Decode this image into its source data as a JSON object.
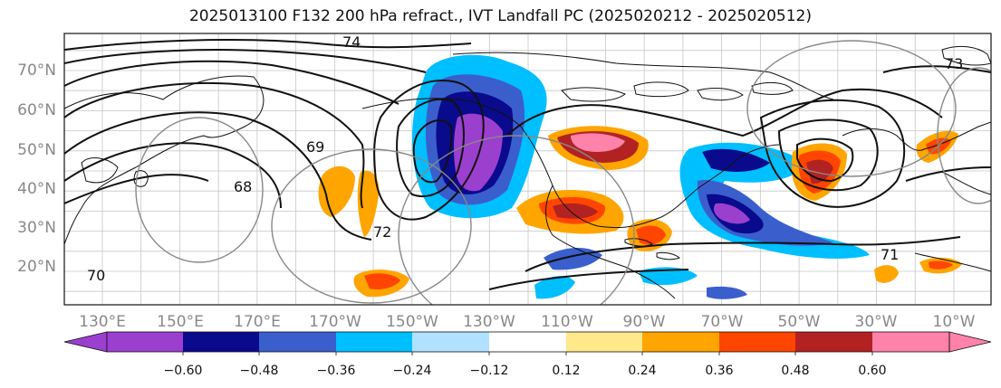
{
  "title": "2025013100 F132 200 hPa refract., IVT Landfall PC (2025020212 - 2025020512)",
  "lat_labels": [
    "70°N",
    "60°N",
    "50°N",
    "40°N",
    "30°N",
    "20°N"
  ],
  "lon_labels": [
    "130°E",
    "150°E",
    "170°E",
    "170°W",
    "150°W",
    "130°W",
    "110°W",
    "90°W",
    "70°W",
    "50°W",
    "30°W",
    "10°W"
  ],
  "contour_labels": [
    "74",
    "73",
    "72",
    "71",
    "70",
    "69",
    "68"
  ],
  "colorbar": {
    "ticks": [
      "−0.60",
      "−0.48",
      "−0.36",
      "−0.24",
      "−0.12",
      "0.12",
      "0.24",
      "0.36",
      "0.48",
      "0.60"
    ],
    "colors": [
      "#9b3fcf",
      "#0a0a8c",
      "#3a5fcd",
      "#00bfff",
      "#b0e2ff",
      "#ffffff",
      "#ffe98a",
      "#ffa500",
      "#ff4500",
      "#b22222",
      "#ff82ab"
    ]
  }
}
